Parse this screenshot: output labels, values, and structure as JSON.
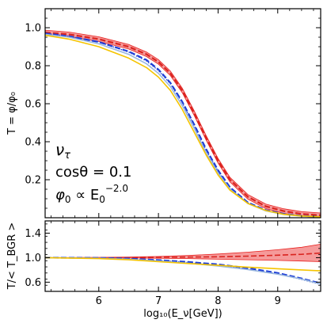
{
  "chart_data": [
    {
      "type": "line",
      "panel": "top",
      "ylabel": "T = φ/φ₀",
      "xlim": [
        5.1,
        9.72
      ],
      "ylim": [
        0.0,
        1.1
      ],
      "yticks": [
        0.2,
        0.4,
        0.6,
        0.8,
        1.0
      ],
      "ytick_labels": [
        "0.2",
        "0.4",
        "0.6",
        "0.8",
        "1.0"
      ],
      "grid": false,
      "annotations": [
        "ν",
        "τ",
        "cosθ = 0.1",
        "φ",
        "0",
        " ∝ E",
        "0",
        "−2.0"
      ],
      "series": [
        {
          "style": "red-dashed-band",
          "color": "#e8201e",
          "x": [
            5.1,
            5.5,
            6.0,
            6.5,
            6.8,
            7.0,
            7.2,
            7.4,
            7.6,
            7.8,
            8.0,
            8.2,
            8.5,
            8.8,
            9.1,
            9.4,
            9.72
          ],
          "values": [
            0.975,
            0.965,
            0.94,
            0.9,
            0.86,
            0.82,
            0.76,
            0.67,
            0.55,
            0.42,
            0.3,
            0.2,
            0.11,
            0.06,
            0.035,
            0.02,
            0.013
          ],
          "band": 0.012
        },
        {
          "style": "blue-dashed",
          "color": "#1f3fd6",
          "x": [
            5.1,
            5.5,
            6.0,
            6.5,
            6.8,
            7.0,
            7.2,
            7.4,
            7.6,
            7.8,
            8.0,
            8.2,
            8.5,
            8.8,
            9.1,
            9.4,
            9.72
          ],
          "values": [
            0.97,
            0.955,
            0.925,
            0.875,
            0.83,
            0.78,
            0.71,
            0.61,
            0.49,
            0.36,
            0.25,
            0.16,
            0.08,
            0.04,
            0.02,
            0.01,
            0.005
          ]
        },
        {
          "style": "blue-dotted",
          "color": "#1f3fd6",
          "x": [
            5.1,
            5.5,
            6.0,
            6.5,
            6.8,
            7.0,
            7.2,
            7.4,
            7.6,
            7.8,
            8.0,
            8.2,
            8.5,
            8.8,
            9.1,
            9.4,
            9.72
          ],
          "values": [
            0.97,
            0.955,
            0.925,
            0.872,
            0.825,
            0.775,
            0.705,
            0.605,
            0.485,
            0.355,
            0.245,
            0.155,
            0.078,
            0.038,
            0.018,
            0.009,
            0.005
          ]
        },
        {
          "style": "light-blue-solid",
          "color": "#9ab8de",
          "x": [
            5.1,
            5.5,
            6.0,
            6.5,
            6.8,
            7.0,
            7.2,
            7.4,
            7.6,
            7.8,
            8.0,
            8.2,
            8.5,
            8.8,
            9.1,
            9.4,
            9.72
          ],
          "values": [
            0.965,
            0.95,
            0.915,
            0.86,
            0.81,
            0.76,
            0.69,
            0.59,
            0.47,
            0.34,
            0.235,
            0.15,
            0.075,
            0.036,
            0.017,
            0.008,
            0.004
          ]
        },
        {
          "style": "yellow-solid",
          "color": "#f5c400",
          "x": [
            5.1,
            5.5,
            6.0,
            6.5,
            6.8,
            7.0,
            7.2,
            7.4,
            7.6,
            7.8,
            8.0,
            8.2,
            8.5,
            8.8,
            9.1,
            9.4,
            9.72
          ],
          "values": [
            0.96,
            0.94,
            0.9,
            0.84,
            0.79,
            0.74,
            0.67,
            0.57,
            0.45,
            0.33,
            0.225,
            0.145,
            0.075,
            0.038,
            0.018,
            0.009,
            0.005
          ]
        }
      ]
    },
    {
      "type": "line",
      "panel": "bottom",
      "xlabel": "log₁₀(E_ν[GeV])",
      "ylabel": "T/< T_BGR >",
      "xlim": [
        5.1,
        9.72
      ],
      "ylim": [
        0.45,
        1.6
      ],
      "xticks": [
        6,
        7,
        8,
        9
      ],
      "xtick_labels": [
        "6",
        "7",
        "8",
        "9"
      ],
      "yticks": [
        0.6,
        1.0,
        1.4
      ],
      "ytick_labels": [
        "0.6",
        "1.0",
        "1.4"
      ],
      "grid": false,
      "series": [
        {
          "style": "red-band",
          "color": "#e8201e",
          "x": [
            5.1,
            6.0,
            6.5,
            7.0,
            7.5,
            8.0,
            8.5,
            9.0,
            9.4,
            9.72
          ],
          "upper": [
            1.0,
            1.005,
            1.01,
            1.02,
            1.035,
            1.06,
            1.09,
            1.13,
            1.17,
            1.22
          ],
          "lower": [
            1.0,
            0.998,
            0.995,
            0.99,
            0.985,
            0.975,
            0.965,
            0.955,
            0.945,
            0.935
          ],
          "center": [
            1.0,
            1.0,
            1.0,
            1.005,
            1.01,
            1.015,
            1.025,
            1.04,
            1.055,
            1.075
          ]
        },
        {
          "style": "blue-dashed",
          "color": "#1f3fd6",
          "x": [
            5.1,
            6.0,
            6.5,
            7.0,
            7.5,
            8.0,
            8.5,
            9.0,
            9.4,
            9.72
          ],
          "values": [
            1.0,
            0.995,
            0.985,
            0.96,
            0.93,
            0.89,
            0.83,
            0.75,
            0.66,
            0.58
          ]
        },
        {
          "style": "blue-dotted",
          "color": "#1f3fd6",
          "x": [
            5.1,
            6.0,
            6.5,
            7.0,
            7.5,
            8.0,
            8.5,
            9.0,
            9.4,
            9.72
          ],
          "values": [
            1.0,
            0.993,
            0.982,
            0.955,
            0.922,
            0.875,
            0.815,
            0.735,
            0.645,
            0.565
          ]
        },
        {
          "style": "light-blue-solid",
          "color": "#9ab8de",
          "x": [
            5.1,
            6.0,
            6.5,
            7.0,
            7.5,
            8.0,
            8.5,
            9.0,
            9.4,
            9.72
          ],
          "values": [
            1.0,
            0.99,
            0.975,
            0.945,
            0.91,
            0.865,
            0.805,
            0.73,
            0.65,
            0.57
          ]
        },
        {
          "style": "yellow-solid",
          "color": "#f5c400",
          "x": [
            5.1,
            6.0,
            6.5,
            7.0,
            7.5,
            8.0,
            8.5,
            9.0,
            9.4,
            9.72
          ],
          "values": [
            1.0,
            0.985,
            0.965,
            0.935,
            0.905,
            0.875,
            0.845,
            0.82,
            0.8,
            0.785
          ]
        }
      ]
    }
  ]
}
